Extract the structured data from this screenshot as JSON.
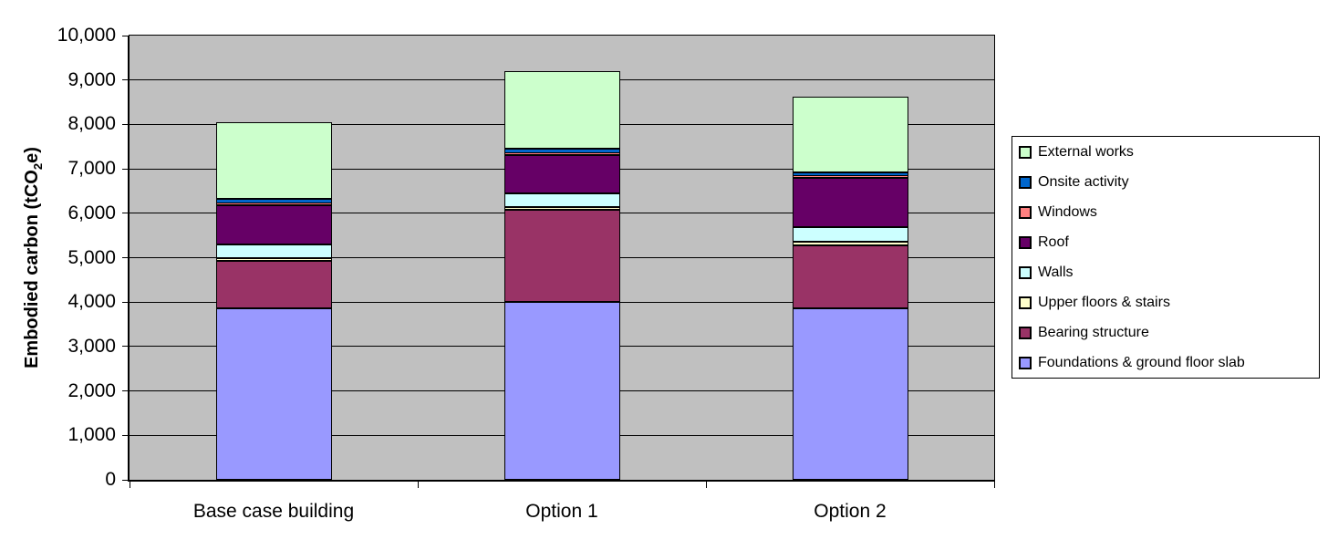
{
  "chart_data": {
    "type": "bar",
    "stacked": true,
    "title": "",
    "ylabel": "Embodied carbon (tCO2e)",
    "ylabel_parts": {
      "pre": "Embodied carbon (tCO",
      "sub": "2",
      "post": "e)"
    },
    "xlabel": "",
    "categories": [
      "Base case building",
      "Option 1",
      "Option 2"
    ],
    "series": [
      {
        "name": "Foundations & ground floor slab",
        "color": "#9999FF",
        "values": [
          3860,
          4000,
          3860
        ]
      },
      {
        "name": "Bearing structure",
        "color": "#993366",
        "values": [
          1060,
          2070,
          1420
        ]
      },
      {
        "name": "Upper floors & stairs",
        "color": "#FFFFCC",
        "values": [
          70,
          70,
          70
        ]
      },
      {
        "name": "Walls",
        "color": "#CCFFFF",
        "values": [
          310,
          310,
          330
        ]
      },
      {
        "name": "Roof",
        "color": "#660066",
        "values": [
          880,
          860,
          1120
        ]
      },
      {
        "name": "Windows",
        "color": "#FF8080",
        "values": [
          40,
          50,
          40
        ]
      },
      {
        "name": "Onsite activity",
        "color": "#0066CC",
        "values": [
          100,
          100,
          90
        ]
      },
      {
        "name": "External works",
        "color": "#CCFFCC",
        "values": [
          1730,
          1740,
          1690
        ]
      }
    ],
    "totals": [
      8050,
      9200,
      8620
    ],
    "ylim": [
      0,
      10000
    ],
    "ytick_step": 1000,
    "ytick_labels": [
      "0",
      "1,000",
      "2,000",
      "3,000",
      "4,000",
      "5,000",
      "6,000",
      "7,000",
      "8,000",
      "9,000",
      "10,000"
    ],
    "legend_position": "right",
    "legend_order": "top-of-stack-first",
    "grid": true,
    "plot_bg_color": "#C0C0C0",
    "gridline_color": "#000000",
    "bar_border_color": "#000000"
  }
}
